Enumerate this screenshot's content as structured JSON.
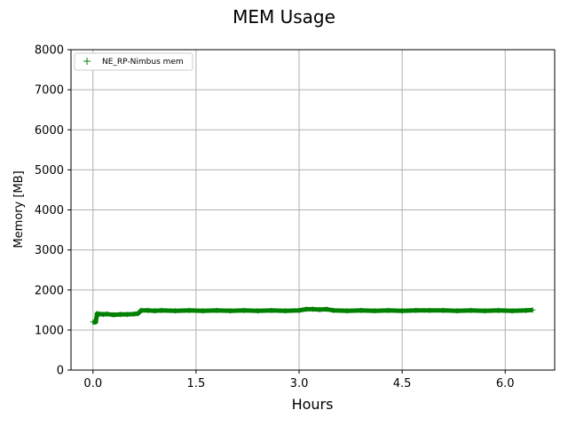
{
  "chart_data": {
    "type": "scatter",
    "title": "MEM Usage",
    "xlabel": "Hours",
    "ylabel": "Memory [MB]",
    "xlim": [
      -0.32,
      6.72
    ],
    "ylim": [
      0,
      8000
    ],
    "xticks": [
      0.0,
      1.5,
      3.0,
      4.5,
      6.0
    ],
    "xtick_labels": [
      "0.0",
      "1.5",
      "3.0",
      "4.5",
      "6.0"
    ],
    "yticks": [
      0,
      1000,
      2000,
      3000,
      4000,
      5000,
      6000,
      7000,
      8000
    ],
    "ytick_labels": [
      "0",
      "1000",
      "2000",
      "3000",
      "4000",
      "5000",
      "6000",
      "7000",
      "8000"
    ],
    "grid": true,
    "legend_position": "top-left",
    "series": [
      {
        "name": "NE_RP-Nimbus mem",
        "color": "#008000",
        "marker": "+",
        "x": [
          0.0,
          0.02,
          0.04,
          0.06,
          0.08,
          0.1,
          0.15,
          0.2,
          0.3,
          0.4,
          0.5,
          0.6,
          0.65,
          0.68,
          0.7,
          0.8,
          0.9,
          1.0,
          1.2,
          1.4,
          1.6,
          1.8,
          2.0,
          2.2,
          2.4,
          2.6,
          2.8,
          3.0,
          3.1,
          3.2,
          3.3,
          3.4,
          3.5,
          3.7,
          3.9,
          4.1,
          4.3,
          4.5,
          4.7,
          4.9,
          5.1,
          5.3,
          5.5,
          5.7,
          5.9,
          6.1,
          6.3,
          6.4
        ],
        "y": [
          1200,
          1200,
          1200,
          1410,
          1390,
          1400,
          1390,
          1400,
          1380,
          1390,
          1390,
          1400,
          1410,
          1450,
          1490,
          1490,
          1480,
          1490,
          1480,
          1490,
          1480,
          1490,
          1480,
          1490,
          1480,
          1490,
          1480,
          1490,
          1520,
          1520,
          1510,
          1520,
          1490,
          1480,
          1490,
          1480,
          1490,
          1480,
          1490,
          1490,
          1490,
          1480,
          1490,
          1480,
          1490,
          1480,
          1490,
          1500
        ]
      }
    ]
  }
}
